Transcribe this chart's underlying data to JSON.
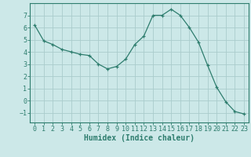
{
  "x": [
    0,
    1,
    2,
    3,
    4,
    5,
    6,
    7,
    8,
    9,
    10,
    11,
    12,
    13,
    14,
    15,
    16,
    17,
    18,
    19,
    20,
    21,
    22,
    23
  ],
  "y": [
    6.2,
    4.9,
    4.6,
    4.2,
    4.0,
    3.8,
    3.7,
    3.0,
    2.6,
    2.8,
    3.4,
    4.6,
    5.3,
    7.0,
    7.0,
    7.5,
    7.0,
    6.0,
    4.8,
    2.9,
    1.1,
    -0.1,
    -0.9,
    -1.1
  ],
  "line_color": "#2e7d6e",
  "marker": "+",
  "marker_color": "#2e7d6e",
  "bg_color": "#cce8e8",
  "grid_color": "#aacccc",
  "axis_color": "#2e7d6e",
  "xlabel": "Humidex (Indice chaleur)",
  "ylim": [
    -1.8,
    8.0
  ],
  "xlim": [
    -0.5,
    23.5
  ],
  "yticks": [
    -1,
    0,
    1,
    2,
    3,
    4,
    5,
    6,
    7
  ],
  "xticks": [
    0,
    1,
    2,
    3,
    4,
    5,
    6,
    7,
    8,
    9,
    10,
    11,
    12,
    13,
    14,
    15,
    16,
    17,
    18,
    19,
    20,
    21,
    22,
    23
  ],
  "tick_fontsize": 6.0,
  "xlabel_fontsize": 7.0
}
